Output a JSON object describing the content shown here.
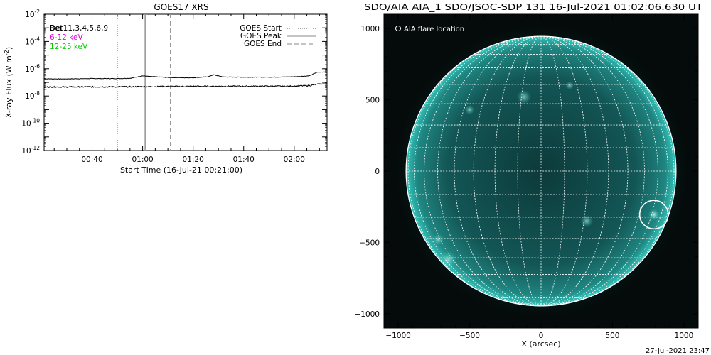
{
  "goes": {
    "title": "GOES17 XRS",
    "xlabel": "Start Time (16-Jul-21 00:21:00)",
    "ylabel": "X-ray Flux (W m",
    "ylabel_exp": "-2",
    "ylabel_close": ")",
    "legend": [
      {
        "label": "Det11,3,4,5,6,9",
        "color": "#000000",
        "overlay": "Bet"
      },
      {
        "label": "6-12 keV",
        "color": "#e000e0"
      },
      {
        "label": "12-25 keV",
        "color": "#00cc00"
      }
    ],
    "markers_legend": [
      {
        "label": "GOES Start",
        "style": "dotted"
      },
      {
        "label": "GOES Peak",
        "style": "solid"
      },
      {
        "label": "GOES End",
        "style": "dashed"
      }
    ]
  },
  "aia": {
    "title": "SDO/AIA AIA_1 SDO/JSOC-SDP 131 16-Jul-2021 01:02:06.630 UT",
    "legend": "AIA flare location",
    "xlabel": "X (arcsec)",
    "timestamp": "27-Jul-2021 23:47"
  },
  "chart_data": [
    {
      "type": "line",
      "title": "GOES17 XRS",
      "xlabel": "Start Time (16-Jul-21 00:21:00)",
      "ylabel": "X-ray Flux (W m^-2)",
      "y_scale": "log",
      "ylim": [
        1e-12,
        0.01
      ],
      "xlim_minutes_after_0000": [
        21,
        133
      ],
      "x_ticks": [
        {
          "minutes": 40,
          "label": "00:40"
        },
        {
          "minutes": 60,
          "label": "01:00"
        },
        {
          "minutes": 80,
          "label": "01:20"
        },
        {
          "minutes": 100,
          "label": "01:40"
        },
        {
          "minutes": 120,
          "label": "02:00"
        }
      ],
      "y_ticks": [
        {
          "value": 1e-12,
          "base": "10",
          "exp": "-12"
        },
        {
          "value": 1e-10,
          "base": "10",
          "exp": "-10"
        },
        {
          "value": 1e-08,
          "base": "10",
          "exp": "-8"
        },
        {
          "value": 1e-06,
          "base": "10",
          "exp": "-6"
        },
        {
          "value": 0.0001,
          "base": "10",
          "exp": "-4"
        },
        {
          "value": 0.01,
          "base": "10",
          "exp": "-2"
        }
      ],
      "series": [
        {
          "name": "",
          "x": [
            21,
            30,
            40,
            50,
            55,
            60,
            63,
            70,
            75,
            80,
            86,
            88,
            92,
            100,
            110,
            115,
            120,
            126,
            129,
            133
          ],
          "y": [
            1.8e-07,
            1.8e-07,
            1.9e-07,
            1.9e-07,
            2e-07,
            3e-07,
            2.7e-07,
            2.3e-07,
            2.2e-07,
            2.2e-07,
            2.6e-07,
            3.6e-07,
            2.5e-07,
            2.4e-07,
            2.4e-07,
            2.5e-07,
            2.6e-07,
            3e-07,
            5.5e-07,
            6e-07
          ]
        },
        {
          "name": "",
          "x": [
            21,
            30,
            40,
            50,
            60,
            70,
            80,
            90,
            100,
            110,
            120,
            126,
            130,
            133
          ],
          "y": [
            4.6e-08,
            4.6e-08,
            4.7e-08,
            4.7e-08,
            4.9e-08,
            5e-08,
            5.1e-08,
            5.2e-08,
            5.2e-08,
            5.2e-08,
            5.3e-08,
            5.8e-08,
            7.5e-08,
            8e-08
          ]
        }
      ],
      "vlines": [
        {
          "name": "GOES Start",
          "x": 50,
          "style": "dotted"
        },
        {
          "name": "GOES Peak",
          "x": 61,
          "style": "solid"
        },
        {
          "name": "GOES End",
          "x": 71,
          "style": "dashed"
        }
      ]
    },
    {
      "type": "scatter",
      "title": "SDO/AIA AIA_1 SDO/JSOC-SDP 131 16-Jul-2021 01:02:06.630 UT",
      "xlabel": "X (arcsec)",
      "ylabel": "",
      "xlim": [
        -1100,
        1100
      ],
      "ylim": [
        -1100,
        1100
      ],
      "x_ticks": [
        -1000,
        -500,
        0,
        500,
        1000
      ],
      "y_ticks": [
        -1000,
        -500,
        0,
        500,
        1000
      ],
      "solar_radius_arcsec": 945,
      "grid_spacing_deg": 10,
      "series": [
        {
          "name": "AIA flare location",
          "x": [
            790
          ],
          "y": [
            -305
          ]
        }
      ]
    }
  ]
}
